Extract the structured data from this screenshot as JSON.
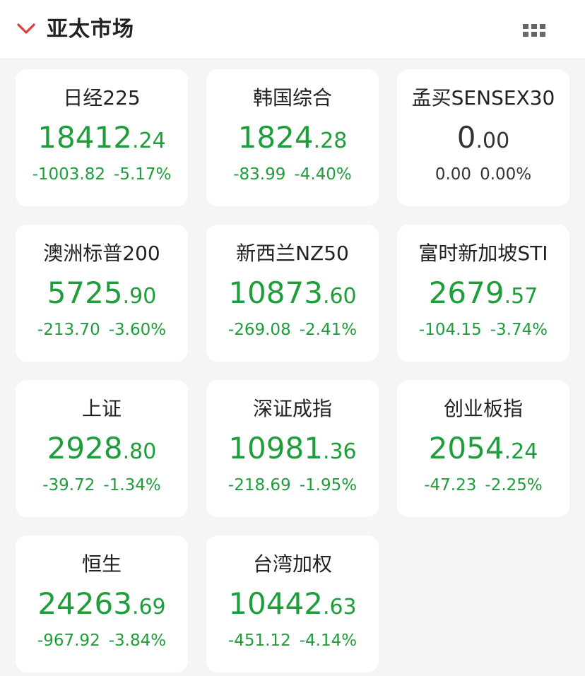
{
  "header": {
    "title": "亚太市场"
  },
  "colors": {
    "down": "#1e9e3a",
    "flat": "#333333",
    "accent": "#e23a3a"
  },
  "icons": {
    "collapse": "chevron-down-icon",
    "layout": "grid-icon"
  },
  "cards": [
    {
      "name": "日经225",
      "price_int": "18412",
      "price_dec": ".24",
      "change": "-1003.82",
      "pct": "-5.17%"
    },
    {
      "name": "韩国综合",
      "price_int": "1824",
      "price_dec": ".28",
      "change": "-83.99",
      "pct": "-4.40%"
    },
    {
      "name": "孟买SENSEX30",
      "price_int": "0",
      "price_dec": ".00",
      "change": "0.00",
      "pct": "0.00%"
    },
    {
      "name": "澳洲标普200",
      "price_int": "5725",
      "price_dec": ".90",
      "change": "-213.70",
      "pct": "-3.60%"
    },
    {
      "name": "新西兰NZ50",
      "price_int": "10873",
      "price_dec": ".60",
      "change": "-269.08",
      "pct": "-2.41%"
    },
    {
      "name": "富时新加坡STI",
      "price_int": "2679",
      "price_dec": ".57",
      "change": "-104.15",
      "pct": "-3.74%"
    },
    {
      "name": "上证",
      "price_int": "2928",
      "price_dec": ".80",
      "change": "-39.72",
      "pct": "-1.34%"
    },
    {
      "name": "深证成指",
      "price_int": "10981",
      "price_dec": ".36",
      "change": "-218.69",
      "pct": "-1.95%"
    },
    {
      "name": "创业板指",
      "price_int": "2054",
      "price_dec": ".24",
      "change": "-47.23",
      "pct": "-2.25%"
    },
    {
      "name": "恒生",
      "price_int": "24263",
      "price_dec": ".69",
      "change": "-967.92",
      "pct": "-3.84%"
    },
    {
      "name": "台湾加权",
      "price_int": "10442",
      "price_dec": ".63",
      "change": "-451.12",
      "pct": "-4.14%"
    }
  ]
}
